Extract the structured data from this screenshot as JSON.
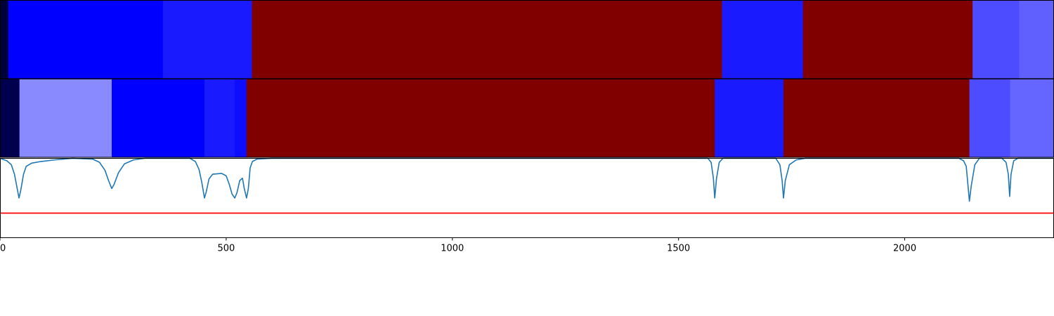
{
  "chart_data": {
    "type": "heatmap",
    "xlim": [
      0,
      2330
    ],
    "x_ticks": [
      {
        "value": 0,
        "label": "0"
      },
      {
        "value": 500,
        "label": "500"
      },
      {
        "value": 1000,
        "label": "1000"
      },
      {
        "value": 1500,
        "label": "1500"
      },
      {
        "value": 2000,
        "label": "2000"
      }
    ],
    "rows": [
      {
        "segments": [
          {
            "start": 0,
            "end": 18,
            "color": "#00003a"
          },
          {
            "start": 18,
            "end": 360,
            "color": "#0000ff"
          },
          {
            "start": 360,
            "end": 557,
            "color": "#1a1aff"
          },
          {
            "start": 557,
            "end": 1596,
            "color": "#800000"
          },
          {
            "start": 1596,
            "end": 1775,
            "color": "#1a1aff"
          },
          {
            "start": 1775,
            "end": 2150,
            "color": "#800000"
          },
          {
            "start": 2150,
            "end": 2253,
            "color": "#4d4dff"
          },
          {
            "start": 2253,
            "end": 2330,
            "color": "#6060ff"
          }
        ]
      },
      {
        "segments": [
          {
            "start": 0,
            "end": 43,
            "color": "#00004f"
          },
          {
            "start": 43,
            "end": 247,
            "color": "#8a8aff"
          },
          {
            "start": 247,
            "end": 452,
            "color": "#0000ff"
          },
          {
            "start": 452,
            "end": 519,
            "color": "#1a1aff"
          },
          {
            "start": 519,
            "end": 545,
            "color": "#0d0dff"
          },
          {
            "start": 545,
            "end": 1580,
            "color": "#800000"
          },
          {
            "start": 1580,
            "end": 1732,
            "color": "#1a1aff"
          },
          {
            "start": 1732,
            "end": 2143,
            "color": "#800000"
          },
          {
            "start": 2143,
            "end": 2233,
            "color": "#4d4dff"
          },
          {
            "start": 2233,
            "end": 2330,
            "color": "#6565ff"
          }
        ]
      }
    ],
    "line": {
      "ylim": [
        0,
        1
      ],
      "color": "#1f77b4",
      "threshold": 0.31,
      "threshold_color": "#ff0000",
      "points": [
        [
          0,
          1
        ],
        [
          5,
          0.99
        ],
        [
          15,
          0.97
        ],
        [
          25,
          0.92
        ],
        [
          32,
          0.8
        ],
        [
          38,
          0.62
        ],
        [
          42,
          0.5
        ],
        [
          46,
          0.6
        ],
        [
          52,
          0.8
        ],
        [
          58,
          0.9
        ],
        [
          70,
          0.94
        ],
        [
          90,
          0.96
        ],
        [
          120,
          0.98
        ],
        [
          160,
          1
        ],
        [
          205,
          0.99
        ],
        [
          220,
          0.95
        ],
        [
          232,
          0.85
        ],
        [
          240,
          0.72
        ],
        [
          247,
          0.62
        ],
        [
          252,
          0.67
        ],
        [
          262,
          0.82
        ],
        [
          275,
          0.93
        ],
        [
          295,
          0.98
        ],
        [
          320,
          1
        ],
        [
          420,
          1
        ],
        [
          432,
          0.96
        ],
        [
          440,
          0.86
        ],
        [
          446,
          0.7
        ],
        [
          452,
          0.5
        ],
        [
          456,
          0.58
        ],
        [
          462,
          0.74
        ],
        [
          470,
          0.8
        ],
        [
          490,
          0.81
        ],
        [
          500,
          0.78
        ],
        [
          507,
          0.67
        ],
        [
          513,
          0.55
        ],
        [
          519,
          0.5
        ],
        [
          524,
          0.57
        ],
        [
          530,
          0.72
        ],
        [
          536,
          0.75
        ],
        [
          540,
          0.62
        ],
        [
          545,
          0.5
        ],
        [
          549,
          0.62
        ],
        [
          553,
          0.88
        ],
        [
          558,
          0.96
        ],
        [
          568,
          0.99
        ],
        [
          600,
          1
        ],
        [
          1565,
          1
        ],
        [
          1572,
          0.95
        ],
        [
          1577,
          0.75
        ],
        [
          1580,
          0.5
        ],
        [
          1584,
          0.75
        ],
        [
          1590,
          0.95
        ],
        [
          1598,
          1
        ],
        [
          1715,
          1
        ],
        [
          1724,
          0.92
        ],
        [
          1729,
          0.72
        ],
        [
          1732,
          0.5
        ],
        [
          1736,
          0.72
        ],
        [
          1745,
          0.92
        ],
        [
          1760,
          0.98
        ],
        [
          1780,
          1
        ],
        [
          2120,
          1
        ],
        [
          2130,
          0.97
        ],
        [
          2136,
          0.9
        ],
        [
          2140,
          0.65
        ],
        [
          2143,
          0.46
        ],
        [
          2147,
          0.65
        ],
        [
          2155,
          0.92
        ],
        [
          2165,
          1
        ],
        [
          2215,
          1
        ],
        [
          2224,
          0.95
        ],
        [
          2229,
          0.8
        ],
        [
          2232,
          0.52
        ],
        [
          2235,
          0.8
        ],
        [
          2241,
          0.97
        ],
        [
          2250,
          1
        ],
        [
          2330,
          1
        ]
      ]
    }
  }
}
